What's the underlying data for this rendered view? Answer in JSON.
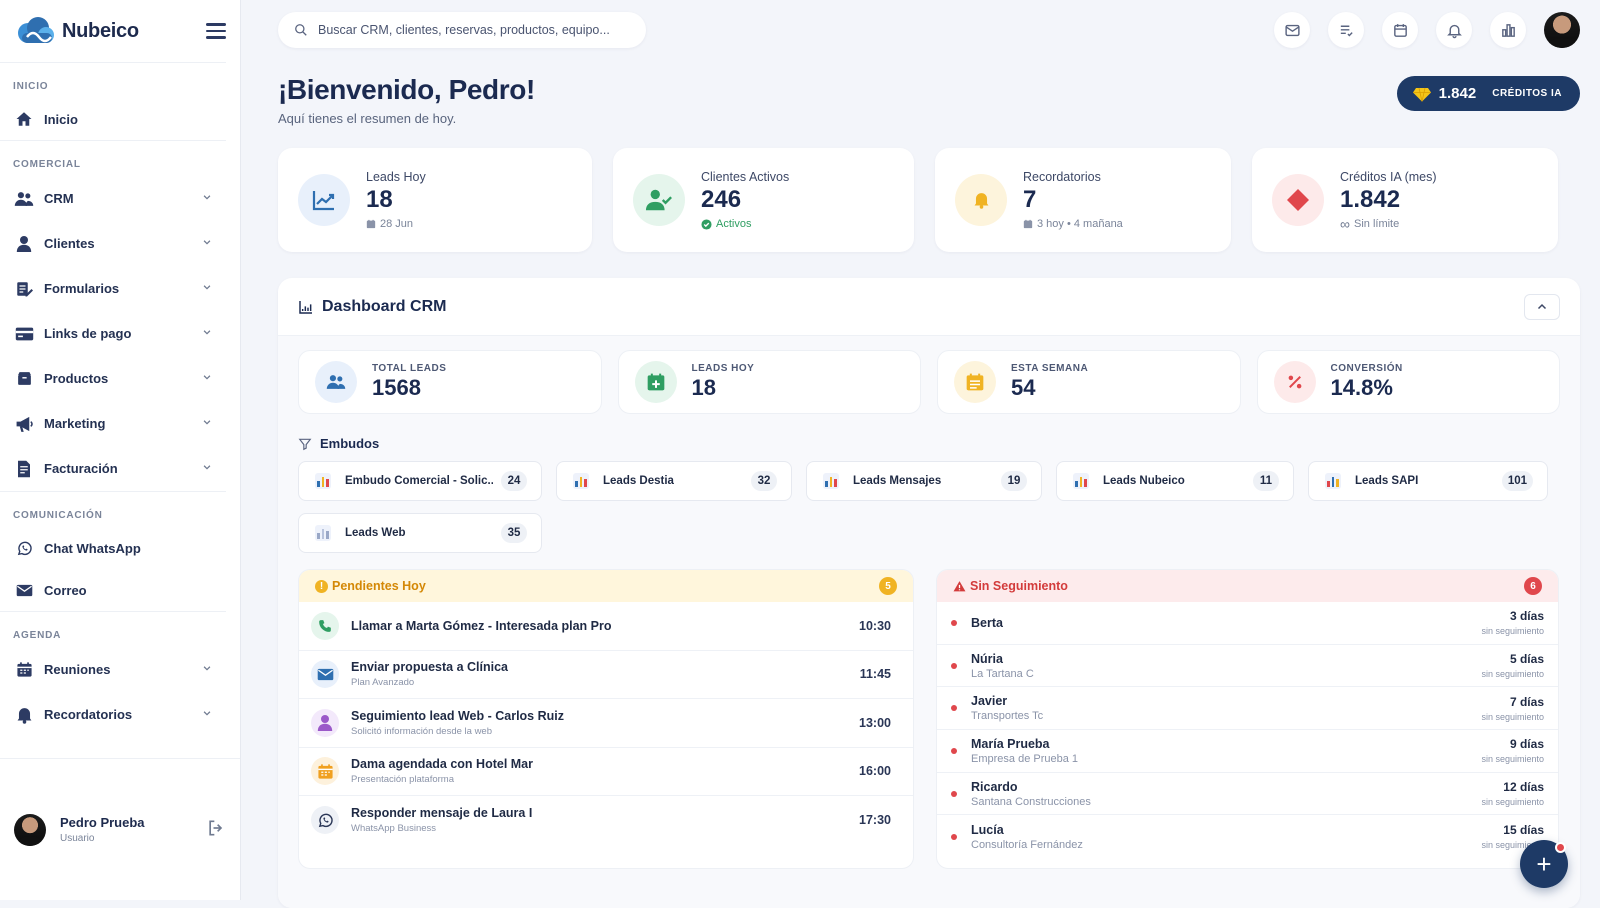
{
  "brand": {
    "name": "Nubeico"
  },
  "sidebar": {
    "sections": [
      {
        "label": "INICIO",
        "items": [
          {
            "label": "Inicio",
            "icon": "home-icon",
            "expandable": false
          }
        ]
      },
      {
        "label": "COMERCIAL",
        "items": [
          {
            "label": "CRM",
            "icon": "users-icon",
            "expandable": true
          },
          {
            "label": "Clientes",
            "icon": "user-icon",
            "expandable": true
          },
          {
            "label": "Formularios",
            "icon": "form-icon",
            "expandable": true
          },
          {
            "label": "Links de pago",
            "icon": "credit-card-icon",
            "expandable": true
          },
          {
            "label": "Productos",
            "icon": "box-icon",
            "expandable": true
          },
          {
            "label": "Marketing",
            "icon": "megaphone-icon",
            "expandable": true
          },
          {
            "label": "Facturación",
            "icon": "invoice-icon",
            "expandable": true
          }
        ]
      },
      {
        "label": "COMUNICACIÓN",
        "items": [
          {
            "label": "Chat WhatsApp",
            "icon": "whatsapp-icon",
            "expandable": false
          },
          {
            "label": "Correo",
            "icon": "mail-icon",
            "expandable": false
          }
        ]
      },
      {
        "label": "AGENDA",
        "items": [
          {
            "label": "Reuniones",
            "icon": "calendar-icon",
            "expandable": true
          },
          {
            "label": "Recordatorios",
            "icon": "bell-icon",
            "expandable": true
          }
        ]
      }
    ],
    "user": {
      "name": "Pedro Prueba",
      "role": "Usuario"
    }
  },
  "search": {
    "placeholder": "Buscar CRM, clientes, reservas, productos, equipo..."
  },
  "welcome": {
    "title": "¡Bienvenido, Pedro!",
    "subtitle": "Aquí tienes el resumen de hoy."
  },
  "credits": {
    "value": "1.842",
    "label": "CRÉDITOS IA"
  },
  "stats": [
    {
      "label": "Leads Hoy",
      "value": "18",
      "sub": "28 Jun",
      "icon": "trend-chart-icon",
      "color": "#2f6fb0",
      "bg": "#e8f0fb"
    },
    {
      "label": "Clientes Activos",
      "value": "246",
      "sub": "Activos",
      "icon": "user-check-icon",
      "color": "#2f9e62",
      "bg": "#e5f5ec"
    },
    {
      "label": "Recordatorios",
      "value": "7",
      "sub": "3 hoy • 4 mañana",
      "icon": "bell-icon",
      "color": "#f0b323",
      "bg": "#fdf4dc"
    },
    {
      "label": "Créditos IA (mes)",
      "value": "1.842",
      "sub": "Sin límite",
      "icon": "diamond-icon",
      "color": "#e0474c",
      "bg": "#fdeaea"
    }
  ],
  "dashboard": {
    "title": "Dashboard CRM",
    "kpis": [
      {
        "label": "TOTAL LEADS",
        "value": "1568",
        "icon": "users-icon",
        "color": "#2f6fb0",
        "bg": "#e8f0fb"
      },
      {
        "label": "LEADS HOY",
        "value": "18",
        "icon": "calendar-plus-icon",
        "color": "#2f9e62",
        "bg": "#e5f5ec"
      },
      {
        "label": "ESTA SEMANA",
        "value": "54",
        "icon": "calendar-week-icon",
        "color": "#f0b323",
        "bg": "#fdf4dc"
      },
      {
        "label": "CONVERSIÓN",
        "value": "14.8%",
        "icon": "percent-icon",
        "color": "#e0474c",
        "bg": "#fdeaea"
      }
    ],
    "funnels_title": "Embudos",
    "funnels": [
      {
        "name": "Embudo Comercial - Solic...",
        "count": "24"
      },
      {
        "name": "Leads Destia",
        "count": "32"
      },
      {
        "name": "Leads Mensajes",
        "count": "19"
      },
      {
        "name": "Leads Nubeico",
        "count": "11"
      },
      {
        "name": "Leads SAPI",
        "count": "101"
      },
      {
        "name": "Leads Web",
        "count": "35"
      }
    ],
    "pending": {
      "title": "Pendientes Hoy",
      "count": "5",
      "items": [
        {
          "title": "Llamar a Marta Gómez - Interesada plan Pro",
          "sub": "",
          "time": "10:30",
          "icon": "phone-icon",
          "color": "#2f9e62",
          "bg": "#e5f5ec"
        },
        {
          "title": "Enviar propuesta a Clínica",
          "sub": "Plan Avanzado",
          "time": "11:45",
          "icon": "mail-icon",
          "color": "#2f6fb0",
          "bg": "#e8f0fb"
        },
        {
          "title": "Seguimiento lead Web - Carlos Ruiz",
          "sub": "Solicitó información desde la web",
          "time": "13:00",
          "icon": "user-icon",
          "color": "#9b59c9",
          "bg": "#f3e9fb"
        },
        {
          "title": "Dama agendada con Hotel Mar",
          "sub": "Presentación plataforma",
          "time": "16:00",
          "icon": "calendar-icon",
          "color": "#f0a020",
          "bg": "#fdf1dc"
        },
        {
          "title": "Responder mensaje de Laura I",
          "sub": "WhatsApp Business",
          "time": "17:30",
          "icon": "whatsapp-icon",
          "color": "#2a3656",
          "bg": "#eef1f6"
        }
      ]
    },
    "no_followup": {
      "title": "Sin Seguimiento",
      "count": "6",
      "label": "sin seguimiento",
      "items": [
        {
          "name": "Berta",
          "company": "",
          "days": "3 días"
        },
        {
          "name": "Núria",
          "company": "La Tartana C",
          "days": "5 días"
        },
        {
          "name": "Javier",
          "company": "Transportes Tc",
          "days": "7 días"
        },
        {
          "name": "María Prueba",
          "company": "Empresa de Prueba 1",
          "days": "9 días"
        },
        {
          "name": "Ricardo",
          "company": "Santana Construcciones",
          "days": "12 días"
        },
        {
          "name": "Lucía",
          "company": "Consultoría Fernández",
          "days": "15 días"
        }
      ]
    }
  }
}
